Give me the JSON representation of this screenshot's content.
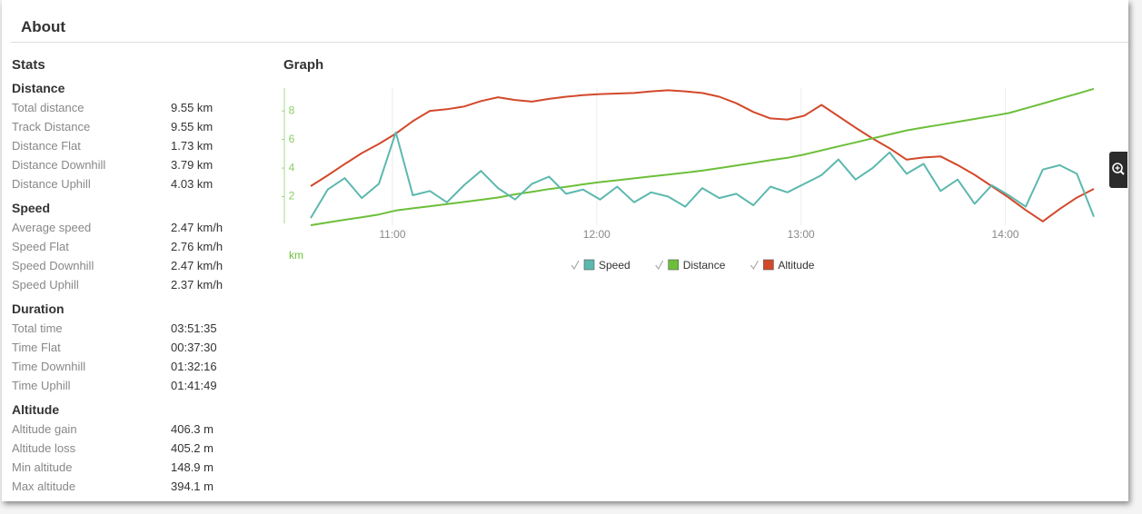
{
  "header": {
    "title": "About"
  },
  "stats": {
    "title": "Stats",
    "sections": [
      {
        "title": "Distance",
        "rows": [
          [
            "Total distance",
            "9.55 km"
          ],
          [
            "Track Distance",
            "9.55 km"
          ],
          [
            "Distance Flat",
            "1.73 km"
          ],
          [
            "Distance Downhill",
            "3.79 km"
          ],
          [
            "Distance Uphill",
            "4.03 km"
          ]
        ]
      },
      {
        "title": "Speed",
        "rows": [
          [
            "Average speed",
            "2.47 km/h"
          ],
          [
            "Speed Flat",
            "2.76 km/h"
          ],
          [
            "Speed Downhill",
            "2.47 km/h"
          ],
          [
            "Speed Uphill",
            "2.37 km/h"
          ]
        ]
      },
      {
        "title": "Duration",
        "rows": [
          [
            "Total time",
            "03:51:35"
          ],
          [
            "Time Flat",
            "00:37:30"
          ],
          [
            "Time Downhill",
            "01:32:16"
          ],
          [
            "Time Uphill",
            "01:41:49"
          ]
        ]
      },
      {
        "title": "Altitude",
        "rows": [
          [
            "Altitude gain",
            "406.3 m"
          ],
          [
            "Altitude loss",
            "405.2 m"
          ],
          [
            "Min altitude",
            "148.9 m"
          ],
          [
            "Max altitude",
            "394.1 m"
          ]
        ]
      }
    ]
  },
  "graph": {
    "title": "Graph"
  },
  "chart_data": {
    "type": "line",
    "ylabel": "km",
    "x": [
      636,
      641,
      646,
      651,
      656,
      661,
      666,
      671,
      676,
      681,
      686,
      691,
      696,
      701,
      706,
      711,
      716,
      721,
      726,
      731,
      736,
      741,
      746,
      751,
      756,
      761,
      766,
      771,
      776,
      781,
      786,
      791,
      796,
      801,
      806,
      811,
      816,
      821,
      826,
      831,
      836,
      841,
      846,
      851,
      856,
      861,
      866
    ],
    "xlim": [
      636,
      866
    ],
    "xticks": [
      {
        "value": 660,
        "label": "11:00"
      },
      {
        "value": 720,
        "label": "12:00"
      },
      {
        "value": 780,
        "label": "13:00"
      },
      {
        "value": 840,
        "label": "14:00"
      }
    ],
    "ylim": [
      0,
      9.6
    ],
    "yticks": [
      2,
      4,
      6,
      8
    ],
    "y2lim": [
      145,
      398
    ],
    "grid": true,
    "series": [
      {
        "name": "Speed",
        "color": "#5cb8ae",
        "values": [
          0.5,
          2.5,
          3.3,
          1.9,
          2.9,
          6.5,
          2.1,
          2.4,
          1.6,
          2.8,
          3.8,
          2.6,
          1.8,
          2.9,
          3.4,
          2.2,
          2.5,
          1.8,
          2.7,
          1.6,
          2.3,
          2.0,
          1.3,
          2.6,
          1.9,
          2.2,
          1.4,
          2.7,
          2.3,
          2.9,
          3.5,
          4.6,
          3.2,
          4.0,
          5.1,
          3.6,
          4.3,
          2.4,
          3.2,
          1.5,
          2.8,
          2.1,
          1.3,
          3.9,
          4.2,
          3.6,
          0.6
        ]
      },
      {
        "name": "Distance",
        "color": "#6cbf3a",
        "values": [
          0,
          0.19,
          0.38,
          0.56,
          0.75,
          1.03,
          1.18,
          1.33,
          1.48,
          1.63,
          1.78,
          1.94,
          2.16,
          2.34,
          2.53,
          2.69,
          2.86,
          3.02,
          3.15,
          3.28,
          3.42,
          3.55,
          3.68,
          3.82,
          4.0,
          4.18,
          4.36,
          4.55,
          4.72,
          4.95,
          5.24,
          5.52,
          5.8,
          6.08,
          6.36,
          6.64,
          6.84,
          7.04,
          7.24,
          7.44,
          7.64,
          7.85,
          8.18,
          8.52,
          8.86,
          9.2,
          9.55
        ]
      },
      {
        "name": "Altitude",
        "color": "#d2492a",
        "axis": "y2",
        "values": [
          217,
          237,
          258,
          278,
          295,
          314,
          337,
          356,
          359,
          364,
          374,
          381,
          376,
          373,
          378,
          382,
          385,
          387,
          388,
          389,
          392,
          394,
          392,
          389,
          382,
          370,
          354,
          342,
          340,
          347,
          367,
          346,
          325,
          305,
          287,
          266,
          270,
          272,
          256,
          238,
          217,
          196,
          173,
          152,
          175,
          196,
          212
        ]
      }
    ]
  }
}
